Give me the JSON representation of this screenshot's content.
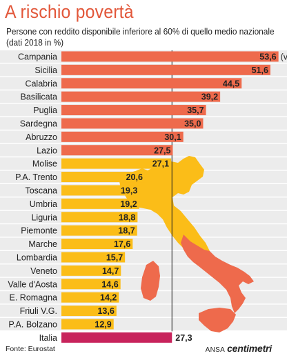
{
  "header": {
    "title": "A rischio povertà",
    "subtitle": "Persone con reddito disponibile inferiore al 60% di quello medio nazionale (dati 2018 in %)"
  },
  "footer": {
    "source": "Fonte: Eurostat",
    "agency": "ANSA",
    "brand": "centimetri"
  },
  "colors": {
    "high": "#ee6a4c",
    "low": "#fbbd18",
    "national": "#c8245c",
    "average_line": "#222222",
    "map_high": "#ee6a4c",
    "map_low": "#fbbd18"
  },
  "chart_data": {
    "type": "bar",
    "orientation": "horizontal",
    "categories": [
      "Campania",
      "Sicilia",
      "Calabria",
      "Basilicata",
      "Puglia",
      "Sardegna",
      "Abruzzo",
      "Lazio",
      "Molise",
      "P.A. Trento",
      "Toscana",
      "Umbria",
      "Liguria",
      "Piemonte",
      "Marche",
      "Lombardia",
      "Veneto",
      "Valle d'Aosta",
      "E. Romagna",
      "Friuli V.G.",
      "P.A. Bolzano",
      "Italia"
    ],
    "values": [
      53.6,
      51.6,
      44.5,
      39.2,
      35.7,
      35.0,
      30.1,
      27.5,
      27.1,
      20.6,
      19.3,
      19.2,
      18.8,
      18.7,
      17.6,
      15.7,
      14.7,
      14.6,
      14.2,
      13.6,
      12.9,
      27.3
    ],
    "value_labels": [
      "53,6",
      "51,6",
      "44,5",
      "39,2",
      "35,7",
      "35,0",
      "30,1",
      "27,5",
      "27,1",
      "20,6",
      "19,3",
      "19,2",
      "18,8",
      "18,7",
      "17,6",
      "15,7",
      "14,7",
      "14,6",
      "14,2",
      "13,6",
      "12,9",
      "27,3"
    ],
    "groups": [
      "high",
      "high",
      "high",
      "high",
      "high",
      "high",
      "high",
      "high",
      "low",
      "low",
      "low",
      "low",
      "low",
      "low",
      "low",
      "low",
      "low",
      "low",
      "low",
      "low",
      "low",
      "national"
    ],
    "annotation": "(valore più alto in Ue)",
    "reference_value": 27.3,
    "xlim": [
      0,
      54
    ]
  }
}
